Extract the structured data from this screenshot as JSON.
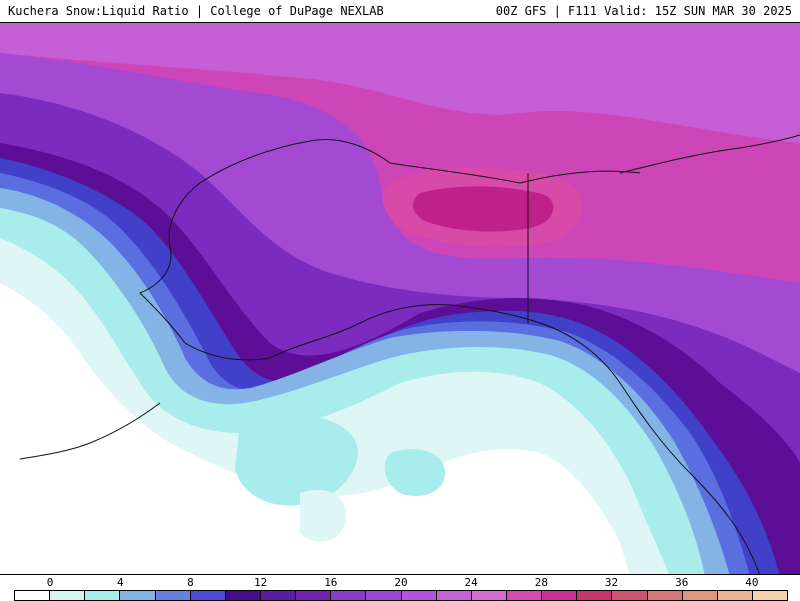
{
  "header": {
    "left_title": "Kuchera Snow:Liquid Ratio | College of DuPage NEXLAB",
    "right_title": "00Z GFS | F111 Valid: 15Z SUN MAR 30 2025"
  },
  "legend": {
    "tick_labels": [
      "0",
      "4",
      "8",
      "12",
      "16",
      "20",
      "24",
      "28",
      "32",
      "36",
      "40"
    ],
    "colors": [
      "#ffffff",
      "#d6f4f4",
      "#a8ecec",
      "#84b4e6",
      "#6a7fe0",
      "#4a4ad6",
      "#4b0a8c",
      "#5d1aa3",
      "#7222b0",
      "#8a3cc6",
      "#a046d6",
      "#b452dc",
      "#c860d8",
      "#d86ad0",
      "#d64ab4",
      "#cc2e92",
      "#c8366e",
      "#cc5470",
      "#d67678",
      "#e29682",
      "#ecb494",
      "#f6d2ac"
    ]
  },
  "map": {
    "colors": {
      "white": "#ffffff",
      "pale_cyan": "#dff6f6",
      "cyan": "#a8ecec",
      "steel_blue": "#84b4e6",
      "blue": "#5a6ee0",
      "indigo": "#4040c8",
      "deep_purple": "#5c0f96",
      "purple": "#7b2cbf",
      "violet": "#a44ad2",
      "orchid": "#c65fd6",
      "magenta": "#cc46b8",
      "hot_magenta": "#c0208a",
      "coast": "#111111"
    }
  }
}
